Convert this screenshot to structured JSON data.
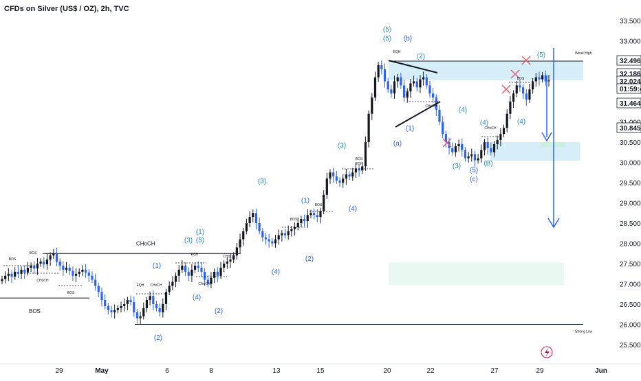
{
  "chart_data": {
    "type": "candlestick",
    "title": "CFDs on Silver (US$ / OZ), 2h, TVC",
    "ylim": [
      25.3,
      33.7
    ],
    "y_ticks": [
      "33.500",
      "33.000",
      "32.500",
      "32.000",
      "31.500",
      "31.000",
      "30.500",
      "30.000",
      "29.500",
      "29.000",
      "28.500",
      "28.000",
      "27.500",
      "27.000",
      "26.500",
      "26.000",
      "25.500"
    ],
    "x_ticks": [
      "29",
      "May",
      "6",
      "8",
      "13",
      "15",
      "20",
      "22",
      "27",
      "29",
      "Jun"
    ],
    "price_tags": [
      {
        "label": "32.496",
        "value": 32.496,
        "color": "#131722"
      },
      {
        "label": "32.186",
        "value": 32.186,
        "color": "#131722"
      },
      {
        "label": "32.024",
        "value": 32.024,
        "color": "#131722"
      },
      {
        "label": "01:59:49",
        "value": 31.85,
        "color": "#131722"
      },
      {
        "label": "31.464",
        "value": 31.464,
        "color": "#131722"
      },
      {
        "label": "30.845",
        "value": 30.845,
        "color": "#131722"
      }
    ],
    "levels": [
      {
        "label": "Weak High",
        "value": 32.5
      },
      {
        "label": "Strong Low",
        "value": 26.0
      },
      {
        "label": "CHoCH",
        "value": 27.75
      },
      {
        "label": "BOS",
        "value": 26.65
      }
    ],
    "zones": [
      {
        "from": 32.03,
        "to": 32.5,
        "color": "#d6eef8"
      },
      {
        "from": 30.04,
        "to": 30.5,
        "color": "#d6eef8"
      },
      {
        "from": 26.97,
        "to": 27.53,
        "color": "#e9f9f1"
      }
    ],
    "closes": [
      27.12,
      27.2,
      27.25,
      27.18,
      27.3,
      27.25,
      27.35,
      27.28,
      27.4,
      27.45,
      27.38,
      27.5,
      27.55,
      27.48,
      27.6,
      27.7,
      27.75,
      27.55,
      27.45,
      27.35,
      27.4,
      27.32,
      27.2,
      27.25,
      27.3,
      27.35,
      27.28,
      27.2,
      27.1,
      26.95,
      26.8,
      26.6,
      26.45,
      26.35,
      26.3,
      26.35,
      26.4,
      26.45,
      26.5,
      26.6,
      26.55,
      26.3,
      26.15,
      26.2,
      26.4,
      26.6,
      26.7,
      26.5,
      26.4,
      26.3,
      26.5,
      26.8,
      26.95,
      27.05,
      27.2,
      27.35,
      27.45,
      27.3,
      27.2,
      27.35,
      27.45,
      27.4,
      27.3,
      27.1,
      27.0,
      27.15,
      27.3,
      27.2,
      27.4,
      27.5,
      27.55,
      27.6,
      27.7,
      27.9,
      28.1,
      28.3,
      28.5,
      28.65,
      28.75,
      28.5,
      28.3,
      28.15,
      28.1,
      28.05,
      28.0,
      28.1,
      28.2,
      28.25,
      28.2,
      28.3,
      28.35,
      28.4,
      28.5,
      28.6,
      28.55,
      28.7,
      28.75,
      28.7,
      28.65,
      28.8,
      29.2,
      29.6,
      29.75,
      29.65,
      29.55,
      29.5,
      29.6,
      29.7,
      29.65,
      29.75,
      29.85,
      29.8,
      29.9,
      30.5,
      31.2,
      31.6,
      32.1,
      32.4,
      32.3,
      32.0,
      31.8,
      31.7,
      32.0,
      32.1,
      31.9,
      31.6,
      31.75,
      31.95,
      32.0,
      31.85,
      32.05,
      32.1,
      31.9,
      31.7,
      31.6,
      31.3,
      31.0,
      30.7,
      30.5,
      30.35,
      30.25,
      30.4,
      30.45,
      30.3,
      30.1,
      30.15,
      30.2,
      30.05,
      30.1,
      30.3,
      30.5,
      30.35,
      30.25,
      30.45,
      30.55,
      30.7,
      30.85,
      31.2,
      31.5,
      31.7,
      31.9,
      31.85,
      31.7,
      31.55,
      31.8,
      32.0,
      32.1,
      32.05,
      32.15,
      32.0,
      32.02
    ],
    "series_colors": {
      "up": "#131722",
      "down": "#2962ff"
    },
    "annotations": [
      {
        "text": "(5)",
        "x": 563,
        "y": 46,
        "color": "#2a8fbd"
      },
      {
        "text": "(5)",
        "x": 563,
        "y": 59,
        "color": "#2a8fbd"
      },
      {
        "text": "(b)",
        "x": 593,
        "y": 59,
        "color": "#2962ff"
      },
      {
        "text": "(2)",
        "x": 612,
        "y": 85,
        "color": "#2a8fbd"
      },
      {
        "text": "(5)",
        "x": 787,
        "y": 83,
        "color": "#2a8fbd"
      },
      {
        "text": "(4)",
        "x": 673,
        "y": 163,
        "color": "#2a8fbd"
      },
      {
        "text": "(1)",
        "x": 596,
        "y": 190,
        "color": "#2962ff"
      },
      {
        "text": "(4)",
        "x": 704,
        "y": 182,
        "color": "#2a8fbd"
      },
      {
        "text": "(4)",
        "x": 758,
        "y": 180,
        "color": "#2a8fbd"
      },
      {
        "text": "(a)",
        "x": 578,
        "y": 212,
        "color": "#2962ff"
      },
      {
        "text": "(3)",
        "x": 497,
        "y": 215,
        "color": "#2a8fbd"
      },
      {
        "text": "(3)",
        "x": 664,
        "y": 245,
        "color": "#2a8fbd"
      },
      {
        "text": "(5)",
        "x": 689,
        "y": 251,
        "color": "#2962ff"
      },
      {
        "text": "(c)",
        "x": 689,
        "y": 264,
        "color": "#2962ff"
      },
      {
        "text": "(B)",
        "x": 710,
        "y": 241,
        "color": "#2a8fbd"
      },
      {
        "text": "(3)",
        "x": 381,
        "y": 267,
        "color": "#2a8fbd"
      },
      {
        "text": "(1)",
        "x": 444,
        "y": 295,
        "color": "#2962ff"
      },
      {
        "text": "(4)",
        "x": 513,
        "y": 307,
        "color": "#2962ff"
      },
      {
        "text": "(1)",
        "x": 291,
        "y": 341,
        "color": "#2a8fbd"
      },
      {
        "text": "(3)",
        "x": 274,
        "y": 353,
        "color": "#2a8fbd"
      },
      {
        "text": "(5)",
        "x": 291,
        "y": 353,
        "color": "#2a8fbd"
      },
      {
        "text": "(2)",
        "x": 450,
        "y": 380,
        "color": "#2962ff"
      },
      {
        "text": "(1)",
        "x": 228,
        "y": 390,
        "color": "#2962ff"
      },
      {
        "text": "(4)",
        "x": 401,
        "y": 399,
        "color": "#2962ff"
      },
      {
        "text": "(4)",
        "x": 286,
        "y": 436,
        "color": "#2962ff"
      },
      {
        "text": "(2)",
        "x": 318,
        "y": 456,
        "color": "#2962ff"
      },
      {
        "text": "(2)",
        "x": 230,
        "y": 495,
        "color": "#2962ff"
      }
    ],
    "small_labels": [
      {
        "text": "BOS",
        "x": 48,
        "y": 370
      },
      {
        "text": "BOS",
        "x": 18,
        "y": 379
      },
      {
        "text": "CHoCH",
        "x": 62,
        "y": 410
      },
      {
        "text": "BOS",
        "x": 103,
        "y": 428
      },
      {
        "text": "EQH",
        "x": 204,
        "y": 417
      },
      {
        "text": "CHoCH",
        "x": 227,
        "y": 417
      },
      {
        "text": "EQH",
        "x": 283,
        "y": 372
      },
      {
        "text": "CHoCH",
        "x": 297,
        "y": 415
      },
      {
        "text": "CHoCH",
        "x": 333,
        "y": 375
      },
      {
        "text": "BOS",
        "x": 427,
        "y": 321
      },
      {
        "text": "BOS",
        "x": 463,
        "y": 300
      },
      {
        "text": "BOS",
        "x": 522,
        "y": 233
      },
      {
        "text": "EQH",
        "x": 522,
        "y": 240
      },
      {
        "text": "EQH",
        "x": 577,
        "y": 77
      },
      {
        "text": "CHoCH",
        "x": 627,
        "y": 156
      },
      {
        "text": "CHoCH",
        "x": 713,
        "y": 188
      },
      {
        "text": "BOS",
        "x": 757,
        "y": 116
      }
    ]
  }
}
